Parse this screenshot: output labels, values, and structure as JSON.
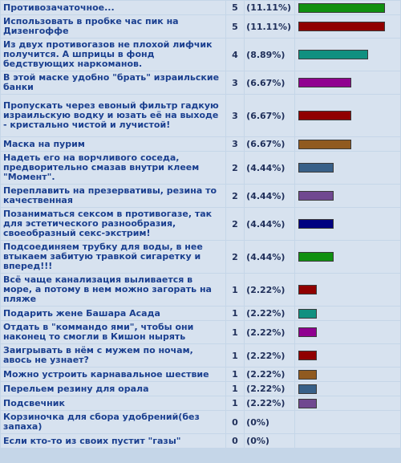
{
  "poll": {
    "max_votes": 5,
    "options": [
      {
        "label": "Противозачаточное...",
        "votes": "5",
        "percent": "(11.11%)",
        "color": "#109010"
      },
      {
        "label": "Использовать в пробке час пик на Дизенгоффе",
        "votes": "5",
        "percent": "(11.11%)",
        "color": "#900000"
      },
      {
        "label": "Из двух противогазов не плохой лифчик получится. А шприцы в фонд бедствующих наркоманов.",
        "votes": "4",
        "percent": "(8.89%)",
        "color": "#109080"
      },
      {
        "label": "В этой маске удобно \"брать\" израильские банки",
        "votes": "3",
        "percent": "(6.67%)",
        "color": "#900090"
      },
      {
        "label": "Пропускать через евоный фильтр гадкую израильскую водку и юзать её на выходе - кристально чистой и лучистой!",
        "votes": "3",
        "percent": "(6.67%)",
        "color": "#900000"
      },
      {
        "label": "Маска на пурим",
        "votes": "3",
        "percent": "(6.67%)",
        "color": "#905a20"
      },
      {
        "label": "Надеть его на ворчливого соседа, предворительно смазав внутри клеем \"Момент\".",
        "votes": "2",
        "percent": "(4.44%)",
        "color": "#386088"
      },
      {
        "label": "Переплавить на презервативы, резина то качественная",
        "votes": "2",
        "percent": "(4.44%)",
        "color": "#704890"
      },
      {
        "label": "Позаниматься сексом в противогазе, так для эстетического разнообразия, своеобразный секс-экстрим!",
        "votes": "2",
        "percent": "(4.44%)",
        "color": "#000080"
      },
      {
        "label": "Подсоединяем трубку для воды, в нее втыкаем забитую травкой сигаретку и вперед!!!",
        "votes": "2",
        "percent": "(4.44%)",
        "color": "#109010"
      },
      {
        "label": "Всё чаще канализация выливается в море, а потому в нем можно загорать на пляже",
        "votes": "1",
        "percent": "(2.22%)",
        "color": "#900000"
      },
      {
        "label": "Подарить жене Башара Асада",
        "votes": "1",
        "percent": "(2.22%)",
        "color": "#109080"
      },
      {
        "label": "Отдать в \"коммандо ями\", чтобы они наконец то смогли в Кишон нырять",
        "votes": "1",
        "percent": "(2.22%)",
        "color": "#900090"
      },
      {
        "label": "Заигрывать в нём с мужем по ночам, авось не узнает?",
        "votes": "1",
        "percent": "(2.22%)",
        "color": "#900000"
      },
      {
        "label": "Можно устроить карнавальное шествие",
        "votes": "1",
        "percent": "(2.22%)",
        "color": "#905a20"
      },
      {
        "label": "Перельем резину для орала",
        "votes": "1",
        "percent": "(2.22%)",
        "color": "#386088"
      },
      {
        "label": "Подсвечник",
        "votes": "1",
        "percent": "(2.22%)",
        "color": "#704890"
      },
      {
        "label": "Корзиночка для сбора удобрений(без запаха)",
        "votes": "0",
        "percent": "(0%)",
        "color": "#000080"
      },
      {
        "label": "Если кто-то из своих пустит \"газы\"",
        "votes": "0",
        "percent": "(0%)",
        "color": "#109010"
      }
    ]
  }
}
